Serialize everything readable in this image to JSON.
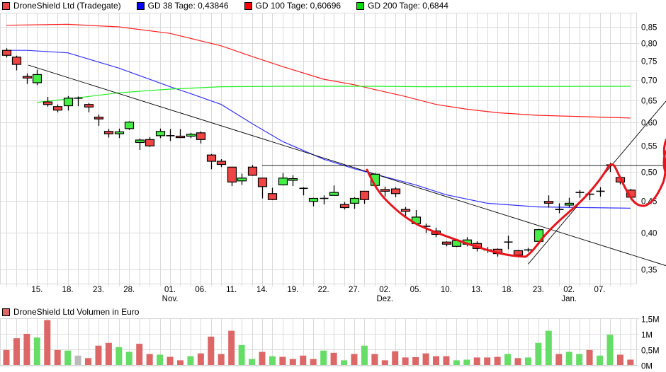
{
  "legend": {
    "price": {
      "label": "DroneShield Ltd (Tradegate)",
      "color": "#ef4444"
    },
    "ma38": {
      "label": "GD 38 Tage: 0,43846",
      "color": "#0000ff"
    },
    "ma100": {
      "label": "GD 100 Tage: 0,60696",
      "color": "#ff0000"
    },
    "ma200": {
      "label": "GD 200 Tage: 0,6844",
      "color": "#00cc00"
    }
  },
  "volume_legend": {
    "label": "DroneShield Ltd Volumen in Euro",
    "color": "#dd6666"
  },
  "chart_data": [
    {
      "type": "candlestick",
      "title": "DroneShield Ltd (Tradegate)",
      "yscale": "log",
      "ylim": [
        0.33,
        0.87
      ],
      "grid": true,
      "legend_placement": "top-left",
      "y_ticks": [
        "0,85",
        "0,80",
        "0,75",
        "0,70",
        "0,65",
        "0,60",
        "0,55",
        "0,50",
        "0,45",
        "0,40",
        "0,35"
      ],
      "y_tick_values": [
        0.85,
        0.8,
        0.75,
        0.7,
        0.65,
        0.6,
        0.55,
        0.5,
        0.45,
        0.4,
        0.35
      ],
      "x_ticks": [
        {
          "date": "15.10.",
          "label": "15."
        },
        {
          "date": "18.10.",
          "label": "18."
        },
        {
          "date": "23.10.",
          "label": "23."
        },
        {
          "date": "28.10.",
          "label": "28."
        },
        {
          "date": "01.11.",
          "label": "01.",
          "month": "Nov."
        },
        {
          "date": "06.11.",
          "label": "06."
        },
        {
          "date": "11.11.",
          "label": "11."
        },
        {
          "date": "14.11.",
          "label": "14."
        },
        {
          "date": "19.11.",
          "label": "19."
        },
        {
          "date": "22.11.",
          "label": "22."
        },
        {
          "date": "27.11.",
          "label": "27."
        },
        {
          "date": "02.12.",
          "label": "02.",
          "month": "Dez."
        },
        {
          "date": "05.12.",
          "label": "05."
        },
        {
          "date": "10.12.",
          "label": "10."
        },
        {
          "date": "13.12.",
          "label": "13."
        },
        {
          "date": "18.12.",
          "label": "18."
        },
        {
          "date": "23.12.",
          "label": "23."
        },
        {
          "date": "02.01.",
          "label": "02.",
          "month": "Jan."
        },
        {
          "date": "07.01.",
          "label": "07."
        }
      ],
      "dates": [
        "10.10.",
        "11.10.",
        "14.10.",
        "15.10.",
        "16.10.",
        "17.10.",
        "18.10.",
        "21.10.",
        "22.10.",
        "23.10.",
        "24.10.",
        "25.10.",
        "28.10.",
        "29.10.",
        "30.10.",
        "31.10.",
        "01.11.",
        "04.11.",
        "05.11.",
        "06.11.",
        "07.11.",
        "08.11.",
        "11.11.",
        "12.11.",
        "13.11.",
        "14.11.",
        "15.11.",
        "18.11.",
        "19.11.",
        "20.11.",
        "21.11.",
        "22.11.",
        "25.11.",
        "26.11.",
        "27.11.",
        "28.11.",
        "29.11.",
        "02.12.",
        "03.12.",
        "04.12.",
        "05.12.",
        "06.12.",
        "09.12.",
        "10.12.",
        "11.12.",
        "12.12.",
        "13.12.",
        "16.12.",
        "17.12.",
        "18.12.",
        "19.12.",
        "20.12.",
        "23.12.",
        "27.12.",
        "30.12.",
        "02.01.",
        "03.01.",
        "06.01.",
        "07.01.",
        "08.01.",
        "09.01.",
        "10.01."
      ],
      "ohlc": [
        [
          0.78,
          0.786,
          0.76,
          0.766
        ],
        [
          0.761,
          0.765,
          0.725,
          0.741
        ],
        [
          0.709,
          0.717,
          0.69,
          0.705
        ],
        [
          0.693,
          0.727,
          0.687,
          0.714
        ],
        [
          0.646,
          0.658,
          0.635,
          0.64
        ],
        [
          0.635,
          0.64,
          0.622,
          0.627
        ],
        [
          0.637,
          0.66,
          0.626,
          0.655
        ],
        [
          0.655,
          0.659,
          0.636,
          0.655
        ],
        [
          0.64,
          0.643,
          0.622,
          0.634
        ],
        [
          0.611,
          0.617,
          0.592,
          0.607
        ],
        [
          0.58,
          0.585,
          0.567,
          0.575
        ],
        [
          0.575,
          0.586,
          0.566,
          0.579
        ],
        [
          0.586,
          0.602,
          0.583,
          0.6
        ],
        [
          0.557,
          0.565,
          0.542,
          0.562
        ],
        [
          0.563,
          0.568,
          0.548,
          0.55
        ],
        [
          0.571,
          0.586,
          0.566,
          0.58
        ],
        [
          0.571,
          0.585,
          0.56,
          0.571
        ],
        [
          0.57,
          0.585,
          0.566,
          0.567
        ],
        [
          0.57,
          0.577,
          0.566,
          0.574
        ],
        [
          0.577,
          0.58,
          0.555,
          0.563
        ],
        [
          0.532,
          0.534,
          0.505,
          0.52
        ],
        [
          0.52,
          0.524,
          0.509,
          0.514
        ],
        [
          0.509,
          0.509,
          0.475,
          0.482
        ],
        [
          0.484,
          0.497,
          0.477,
          0.489
        ],
        [
          0.509,
          0.513,
          0.493,
          0.494
        ],
        [
          0.489,
          0.489,
          0.454,
          0.474
        ],
        [
          0.462,
          0.472,
          0.451,
          0.452
        ],
        [
          0.477,
          0.498,
          0.476,
          0.489
        ],
        [
          0.485,
          0.494,
          0.475,
          0.488
        ],
        [
          0.471,
          0.473,
          0.459,
          0.471
        ],
        [
          0.449,
          0.455,
          0.441,
          0.454
        ],
        [
          0.455,
          0.459,
          0.444,
          0.453
        ],
        [
          0.459,
          0.476,
          0.459,
          0.464
        ],
        [
          0.444,
          0.448,
          0.436,
          0.439
        ],
        [
          0.446,
          0.456,
          0.437,
          0.454
        ],
        [
          0.466,
          0.466,
          0.445,
          0.452
        ],
        [
          0.476,
          0.498,
          0.476,
          0.496
        ],
        [
          0.469,
          0.474,
          0.457,
          0.466
        ],
        [
          0.47,
          0.473,
          0.456,
          0.462
        ],
        [
          0.436,
          0.44,
          0.423,
          0.433
        ],
        [
          0.414,
          0.435,
          0.413,
          0.424
        ],
        [
          0.41,
          0.414,
          0.4,
          0.41
        ],
        [
          0.403,
          0.408,
          0.394,
          0.398
        ],
        [
          0.387,
          0.388,
          0.381,
          0.384
        ],
        [
          0.381,
          0.39,
          0.38,
          0.389
        ],
        [
          0.384,
          0.394,
          0.381,
          0.39
        ],
        [
          0.385,
          0.388,
          0.374,
          0.378
        ],
        [
          0.376,
          0.38,
          0.372,
          0.376
        ],
        [
          0.377,
          0.378,
          0.367,
          0.371
        ],
        [
          0.387,
          0.396,
          0.377,
          0.387
        ],
        [
          0.375,
          0.376,
          0.368,
          0.369
        ],
        [
          0.376,
          0.379,
          0.373,
          0.376
        ],
        [
          0.388,
          0.406,
          0.384,
          0.405
        ],
        [
          0.449,
          0.459,
          0.439,
          0.446
        ],
        [
          0.436,
          0.446,
          0.43,
          0.436
        ],
        [
          0.443,
          0.455,
          0.439,
          0.446
        ],
        [
          0.464,
          0.468,
          0.455,
          0.464
        ],
        [
          0.462,
          0.468,
          0.451,
          0.46
        ],
        [
          0.466,
          0.473,
          0.457,
          0.466
        ],
        [
          0.514,
          0.517,
          0.5,
          0.512
        ],
        [
          0.49,
          0.492,
          0.478,
          0.482
        ],
        [
          0.468,
          0.47,
          0.452,
          0.456
        ]
      ],
      "moving_averages": [
        {
          "name": "GD 38 Tage",
          "color": "#3333ff",
          "points": [
            [
              "10.10.",
              0.78
            ],
            [
              "14.10.",
              0.78
            ],
            [
              "18.10.",
              0.773
            ],
            [
              "25.10.",
              0.731
            ],
            [
              "01.11.",
              0.683
            ],
            [
              "05.11.",
              0.666
            ],
            [
              "08.11.",
              0.64
            ],
            [
              "13.11.",
              0.597
            ],
            [
              "18.11.",
              0.559
            ],
            [
              "22.11.",
              0.524
            ],
            [
              "27.11.",
              0.506
            ],
            [
              "05.12.",
              0.477
            ],
            [
              "10.12.",
              0.46
            ],
            [
              "16.12.",
              0.446
            ],
            [
              "23.12.",
              0.44
            ],
            [
              "10.01.",
              0.438
            ]
          ]
        },
        {
          "name": "GD 100 Tage",
          "color": "#ff2020",
          "points": [
            [
              "10.10.",
              0.855
            ],
            [
              "18.10.",
              0.858
            ],
            [
              "25.10.",
              0.85
            ],
            [
              "01.11.",
              0.83
            ],
            [
              "08.11.",
              0.793
            ],
            [
              "13.11.",
              0.763
            ],
            [
              "18.11.",
              0.735
            ],
            [
              "22.11.",
              0.702
            ],
            [
              "27.11.",
              0.688
            ],
            [
              "29.11.",
              0.676
            ],
            [
              "04.12.",
              0.659
            ],
            [
              "09.12.",
              0.64
            ],
            [
              "12.12.",
              0.629
            ],
            [
              "17.12.",
              0.621
            ],
            [
              "23.12.",
              0.615
            ],
            [
              "10.01.",
              0.609
            ]
          ]
        },
        {
          "name": "GD 200 Tage",
          "color": "#22ee22",
          "points": [
            [
              "15.10.",
              0.645
            ],
            [
              "18.10.",
              0.653
            ],
            [
              "25.10.",
              0.668
            ],
            [
              "01.11.",
              0.677
            ],
            [
              "08.11.",
              0.683
            ],
            [
              "18.11.",
              0.684
            ],
            [
              "29.11.",
              0.684
            ],
            [
              "06.12.",
              0.683
            ],
            [
              "10.01.",
              0.684
            ]
          ]
        }
      ],
      "trend_lines": [
        {
          "from": [
            "11.10.",
            0.739
          ],
          "to": [
            "15.01.",
            0.355
          ],
          "color": "#000000"
        },
        {
          "from": [
            "14.11.",
            0.512
          ],
          "to": [
            "15.01.",
            0.512
          ],
          "color": "#000000"
        },
        {
          "from": [
            "20.12.",
            0.357
          ],
          "to": [
            "15.01.",
            0.648
          ],
          "color": "#000000"
        }
      ]
    },
    {
      "type": "bar",
      "title": "DroneShield Ltd Volumen in Euro",
      "ylim": [
        0,
        1.5
      ],
      "y_unit": "M",
      "y_ticks": [
        "1,5M",
        "1M",
        "0,5M",
        "0M"
      ],
      "y_tick_values": [
        1.5,
        1,
        0.5,
        0
      ],
      "grid": true,
      "values": [
        0.48,
        0.86,
        1.0,
        0.88,
        1.44,
        0.48,
        0.46,
        0.3,
        0.22,
        0.62,
        0.71,
        0.57,
        0.42,
        0.68,
        0.35,
        0.33,
        0.26,
        0.15,
        0.28,
        0.37,
        0.91,
        0.35,
        1.1,
        0.64,
        0.19,
        0.42,
        0.28,
        0.26,
        0.19,
        0.3,
        0.19,
        0.46,
        0.39,
        0.15,
        0.35,
        0.62,
        0.35,
        0.15,
        0.44,
        0.24,
        0.25,
        0.37,
        0.28,
        0.28,
        0.15,
        0.17,
        0.24,
        0.24,
        0.26,
        0.35,
        0.22,
        0.24,
        0.71,
        1.1,
        0.35,
        0.42,
        0.35,
        0.48,
        0.3,
        0.97,
        0.33,
        0.17
      ],
      "colors": [
        "r",
        "r",
        "r",
        "g",
        "r",
        "r",
        "g",
        "n",
        "r",
        "r",
        "r",
        "g",
        "g",
        "r",
        "r",
        "g",
        "r",
        "r",
        "g",
        "r",
        "r",
        "r",
        "r",
        "g",
        "g",
        "r",
        "g",
        "r",
        "r",
        "r",
        "r",
        "g",
        "r",
        "g",
        "r",
        "g",
        "r",
        "r",
        "r",
        "r",
        "r",
        "r",
        "r",
        "r",
        "g",
        "g",
        "r",
        "r",
        "r",
        "g",
        "r",
        "g",
        "g",
        "g",
        "r",
        "g",
        "g",
        "r",
        "g",
        "g",
        "r",
        "r"
      ],
      "color_map": {
        "r": "#dd6666",
        "g": "#66dd66",
        "n": "#bbbbbb"
      }
    }
  ]
}
